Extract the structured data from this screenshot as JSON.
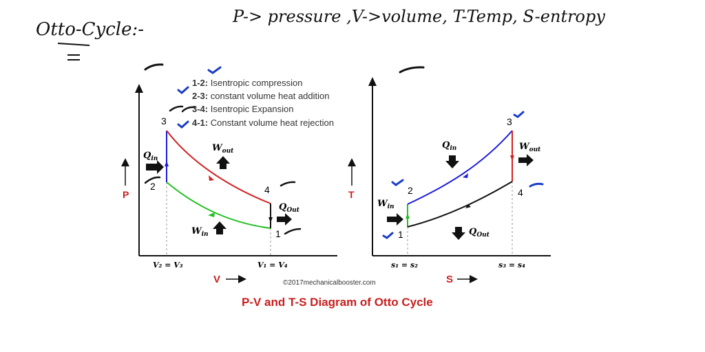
{
  "handwriting": {
    "title": "Otto-Cycle:-",
    "legend": "P-> pressure ,V->volume, T-Temp, S-entropy"
  },
  "legend_items": [
    {
      "key": "1-2:",
      "text": "Isentropic compression"
    },
    {
      "key": "2-3:",
      "text": "constant volume heat addition"
    },
    {
      "key": "3-4:",
      "text": "Isentropic Expansion"
    },
    {
      "key": "4-1:",
      "text": "Constant volume heat rejection"
    }
  ],
  "pv": {
    "axis_y": "P",
    "axis_x": "V",
    "points": [
      "1",
      "2",
      "3",
      "4"
    ],
    "tick_left": "V₂ = V₃",
    "tick_right": "V₁ = V₄",
    "q_in": "Q",
    "q_in_sub": "in",
    "w_out": "W",
    "w_out_sub": "out",
    "q_out": "Q",
    "q_out_sub": "Out",
    "w_in": "W",
    "w_in_sub": "in"
  },
  "ts": {
    "axis_y": "T",
    "axis_x": "S",
    "points": [
      "1",
      "2",
      "3",
      "4"
    ],
    "tick_left": "s₁ = s₂",
    "tick_right": "s₃ = s₄",
    "q_in": "Q",
    "q_in_sub": "in",
    "w_out": "W",
    "w_out_sub": "out",
    "q_out": "Q",
    "q_out_sub": "Out",
    "w_in": "W",
    "w_in_sub": "in"
  },
  "copyright": "©2017mechanicalbooster.com",
  "caption": "P-V and T-S Diagram of Otto Cycle",
  "colors": {
    "compression": "#22c022",
    "heat_add": "#1a1adc",
    "expansion": "#d42020",
    "rejection": "#111111",
    "axis_label": "#c81e1e",
    "check": "#1a3cc8"
  }
}
